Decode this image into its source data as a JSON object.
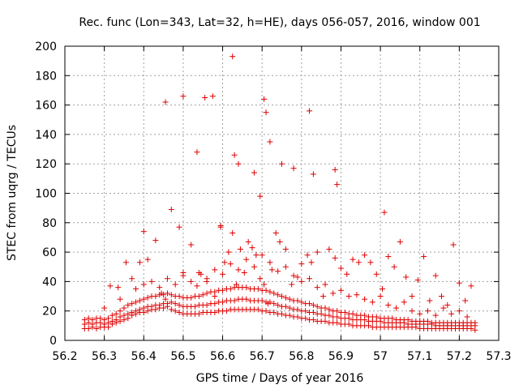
{
  "chart_data": {
    "type": "scatter",
    "title": "Rec. func (Lon=343, Lat=32, h=HE), days 056-057, 2016, window 001",
    "xlabel": "GPS time / Days of year 2016",
    "ylabel": "STEC from uqrg / TECUs",
    "xlim": [
      56.2,
      57.3
    ],
    "ylim": [
      0,
      200
    ],
    "xticks": [
      "56.2",
      "56.3",
      "56.4",
      "56.5",
      "56.6",
      "56.7",
      "56.8",
      "56.9",
      "57",
      "57.1",
      "57.2",
      "57.3"
    ],
    "yticks": [
      "0",
      "20",
      "40",
      "60",
      "80",
      "100",
      "120",
      "140",
      "160",
      "180",
      "200"
    ],
    "grid": true,
    "marker": "plus",
    "color": "#e00000",
    "series": [
      {
        "x": [
          56.25,
          56.26,
          56.27,
          56.28,
          56.29,
          56.3,
          56.31,
          56.32,
          56.33,
          56.34,
          56.35,
          56.36,
          56.37,
          56.38,
          56.39,
          56.4,
          56.41,
          56.42,
          56.43,
          56.44,
          56.45,
          56.46,
          56.47,
          56.48,
          56.49,
          56.5,
          56.51,
          56.52,
          56.53,
          56.54,
          56.55,
          56.56,
          56.57,
          56.58,
          56.59,
          56.6,
          56.61,
          56.62,
          56.63,
          56.64,
          56.65,
          56.66,
          56.67,
          56.68,
          56.69,
          56.7,
          56.71,
          56.72,
          56.73,
          56.74,
          56.75,
          56.76,
          56.77,
          56.78,
          56.79,
          56.8,
          56.81,
          56.82,
          56.83,
          56.84,
          56.85,
          56.86,
          56.87,
          56.88,
          56.89,
          56.9,
          56.91,
          56.92,
          56.93,
          56.94,
          56.95,
          56.96,
          56.97,
          56.98,
          56.99,
          57.0,
          57.01,
          57.02,
          57.03,
          57.04,
          57.05,
          57.06,
          57.07,
          57.08,
          57.09,
          57.1,
          57.11,
          57.12,
          57.13,
          57.14,
          57.15,
          57.16,
          57.17,
          57.18,
          57.19,
          57.2,
          57.21,
          57.22,
          57.23,
          57.24
        ],
        "y": [
          8,
          8,
          9,
          8,
          9,
          9,
          9,
          11,
          12,
          13,
          14,
          15,
          17,
          18,
          19,
          19,
          20,
          21,
          21,
          22,
          22,
          23,
          21,
          20,
          19,
          18,
          18,
          18,
          18,
          18,
          19,
          19,
          19,
          19,
          20,
          20,
          20,
          21,
          21,
          21,
          21,
          21,
          21,
          21,
          21,
          20,
          20,
          19,
          19,
          18,
          18,
          17,
          17,
          16,
          16,
          15,
          15,
          14,
          14,
          13,
          13,
          13,
          12,
          12,
          12,
          11,
          11,
          11,
          10,
          10,
          10,
          10,
          10,
          9,
          9,
          9,
          9,
          9,
          9,
          9,
          9,
          9,
          9,
          9,
          9,
          8,
          8,
          8,
          8,
          8,
          8,
          8,
          8,
          8,
          8,
          8,
          8,
          8,
          8,
          7
        ]
      },
      {
        "x": [
          56.25,
          56.26,
          56.27,
          56.28,
          56.29,
          56.3,
          56.31,
          56.32,
          56.33,
          56.34,
          56.35,
          56.36,
          56.37,
          56.38,
          56.39,
          56.4,
          56.41,
          56.42,
          56.43,
          56.44,
          56.45,
          56.46,
          56.47,
          56.48,
          56.49,
          56.5,
          56.51,
          56.52,
          56.53,
          56.54,
          56.55,
          56.56,
          56.57,
          56.58,
          56.59,
          56.6,
          56.61,
          56.62,
          56.63,
          56.64,
          56.65,
          56.66,
          56.67,
          56.68,
          56.69,
          56.7,
          56.71,
          56.72,
          56.73,
          56.74,
          56.75,
          56.76,
          56.77,
          56.78,
          56.79,
          56.8,
          56.81,
          56.82,
          56.83,
          56.84,
          56.85,
          56.86,
          56.87,
          56.88,
          56.89,
          56.9,
          56.91,
          56.92,
          56.93,
          56.94,
          56.95,
          56.96,
          56.97,
          56.98,
          56.99,
          57.0,
          57.01,
          57.02,
          57.03,
          57.04,
          57.05,
          57.06,
          57.07,
          57.08,
          57.09,
          57.1,
          57.11,
          57.12,
          57.13,
          57.14,
          57.15,
          57.16,
          57.17,
          57.18,
          57.19,
          57.2,
          57.21,
          57.22,
          57.23,
          57.24
        ],
        "y": [
          11,
          12,
          11,
          12,
          12,
          11,
          12,
          13,
          14,
          16,
          17,
          18,
          19,
          20,
          21,
          22,
          23,
          23,
          24,
          24,
          25,
          25,
          26,
          25,
          24,
          23,
          23,
          23,
          23,
          24,
          24,
          24,
          25,
          25,
          26,
          26,
          27,
          27,
          27,
          28,
          28,
          28,
          27,
          27,
          27,
          27,
          26,
          26,
          25,
          24,
          23,
          23,
          22,
          21,
          21,
          20,
          20,
          19,
          19,
          18,
          18,
          17,
          17,
          16,
          16,
          15,
          15,
          15,
          14,
          14,
          14,
          14,
          13,
          13,
          13,
          13,
          12,
          12,
          12,
          12,
          12,
          12,
          11,
          11,
          11,
          11,
          11,
          11,
          11,
          10,
          10,
          10,
          10,
          10,
          10,
          10,
          10,
          10,
          10,
          10
        ]
      },
      {
        "x": [
          56.25,
          56.26,
          56.27,
          56.28,
          56.29,
          56.3,
          56.31,
          56.32,
          56.33,
          56.34,
          56.35,
          56.36,
          56.37,
          56.38,
          56.39,
          56.4,
          56.41,
          56.42,
          56.43,
          56.44,
          56.45,
          56.46,
          56.47,
          56.48,
          56.49,
          56.5,
          56.51,
          56.52,
          56.53,
          56.54,
          56.55,
          56.56,
          56.57,
          56.58,
          56.59,
          56.6,
          56.61,
          56.62,
          56.63,
          56.64,
          56.65,
          56.66,
          56.67,
          56.68,
          56.69,
          56.7,
          56.71,
          56.72,
          56.73,
          56.74,
          56.75,
          56.76,
          56.77,
          56.78,
          56.79,
          56.8,
          56.81,
          56.82,
          56.83,
          56.84,
          56.85,
          56.86,
          56.87,
          56.88,
          56.89,
          56.9,
          56.91,
          56.92,
          56.93,
          56.94,
          56.95,
          56.96,
          56.97,
          56.98,
          56.99,
          57.0,
          57.01,
          57.02,
          57.03,
          57.04,
          57.05,
          57.06,
          57.07,
          57.08,
          57.09,
          57.1,
          57.11,
          57.12,
          57.13,
          57.14,
          57.15,
          57.16,
          57.17,
          57.18,
          57.19,
          57.2,
          57.21,
          57.22,
          57.23,
          57.24
        ],
        "y": [
          14,
          15,
          14,
          15,
          15,
          14,
          15,
          17,
          18,
          20,
          22,
          24,
          25,
          26,
          27,
          28,
          29,
          30,
          30,
          31,
          31,
          32,
          31,
          30,
          30,
          29,
          29,
          29,
          30,
          30,
          31,
          32,
          33,
          33,
          34,
          34,
          35,
          35,
          36,
          36,
          36,
          36,
          35,
          35,
          35,
          34,
          34,
          33,
          32,
          31,
          30,
          29,
          28,
          27,
          27,
          26,
          25,
          25,
          24,
          23,
          22,
          22,
          21,
          20,
          20,
          19,
          19,
          18,
          18,
          17,
          17,
          17,
          16,
          16,
          16,
          15,
          15,
          15,
          15,
          14,
          14,
          14,
          14,
          13,
          13,
          13,
          13,
          13,
          12,
          12,
          12,
          12,
          12,
          12,
          12,
          12,
          12,
          12,
          12,
          12
        ]
      },
      {
        "x": [
          56.3,
          56.34,
          56.38,
          56.4,
          56.42,
          56.44,
          56.46,
          56.48,
          56.5,
          56.52,
          56.54,
          56.56,
          56.58,
          56.6,
          56.62,
          56.64,
          56.66,
          56.68,
          56.7,
          56.72,
          56.74,
          56.76,
          56.78,
          56.8,
          56.82,
          56.84,
          56.86,
          56.88,
          56.9,
          56.92,
          56.94,
          56.96,
          56.98,
          57.0,
          57.02,
          57.04,
          57.06,
          57.08,
          57.1,
          57.12,
          57.14,
          57.16,
          57.18,
          57.2,
          57.22
        ],
        "y": [
          22,
          28,
          35,
          38,
          40,
          36,
          42,
          38,
          44,
          40,
          46,
          42,
          48,
          45,
          52,
          48,
          55,
          50,
          58,
          53,
          47,
          50,
          44,
          40,
          42,
          36,
          38,
          32,
          34,
          30,
          31,
          28,
          26,
          30,
          24,
          22,
          26,
          20,
          18,
          20,
          17,
          22,
          18,
          20,
          16
        ]
      },
      {
        "x": [
          56.315,
          56.335,
          56.355,
          56.37,
          56.39,
          56.4,
          56.41,
          56.43,
          56.445,
          56.455,
          56.47,
          56.49,
          56.5,
          56.52,
          56.535,
          56.545,
          56.56,
          56.58,
          56.595,
          56.605,
          56.615,
          56.625,
          56.635,
          56.645,
          56.655,
          56.665,
          56.675,
          56.685,
          56.695,
          56.705,
          56.715,
          56.725,
          56.735,
          56.745,
          56.76,
          56.775,
          56.79,
          56.8,
          56.815,
          56.825,
          56.84,
          56.855,
          56.87,
          56.885,
          56.9,
          56.915,
          56.93,
          56.945,
          56.96,
          56.975,
          56.99,
          57.005,
          57.02,
          57.035,
          57.05,
          57.065,
          57.08,
          57.095,
          57.11,
          57.125,
          57.14,
          57.155,
          57.17,
          57.185,
          57.2,
          57.215,
          57.23
        ],
        "y": [
          37,
          36,
          53,
          42,
          53,
          74,
          55,
          68,
          32,
          28,
          89,
          77,
          46,
          65,
          37,
          45,
          40,
          30,
          77,
          53,
          60,
          73,
          38,
          62,
          46,
          67,
          63,
          58,
          42,
          38,
          25,
          48,
          73,
          67,
          62,
          38,
          43,
          52,
          58,
          53,
          60,
          30,
          62,
          56,
          49,
          45,
          55,
          53,
          58,
          53,
          45,
          35,
          57,
          50,
          67,
          43,
          30,
          41,
          57,
          27,
          44,
          30,
          24,
          65,
          39,
          27,
          37
        ]
      },
      {
        "x": [
          56.455,
          56.5,
          56.535,
          56.555,
          56.575,
          56.595,
          56.625,
          56.63,
          56.64,
          56.68,
          56.695,
          56.705,
          56.71,
          56.72,
          56.75,
          56.78,
          56.82,
          56.83,
          56.885,
          56.89,
          57.01
        ],
        "y": [
          162,
          166,
          128,
          165,
          166,
          78,
          193,
          126,
          120,
          114,
          98,
          164,
          155,
          135,
          120,
          117,
          156,
          113,
          116,
          106,
          87
        ]
      }
    ]
  }
}
